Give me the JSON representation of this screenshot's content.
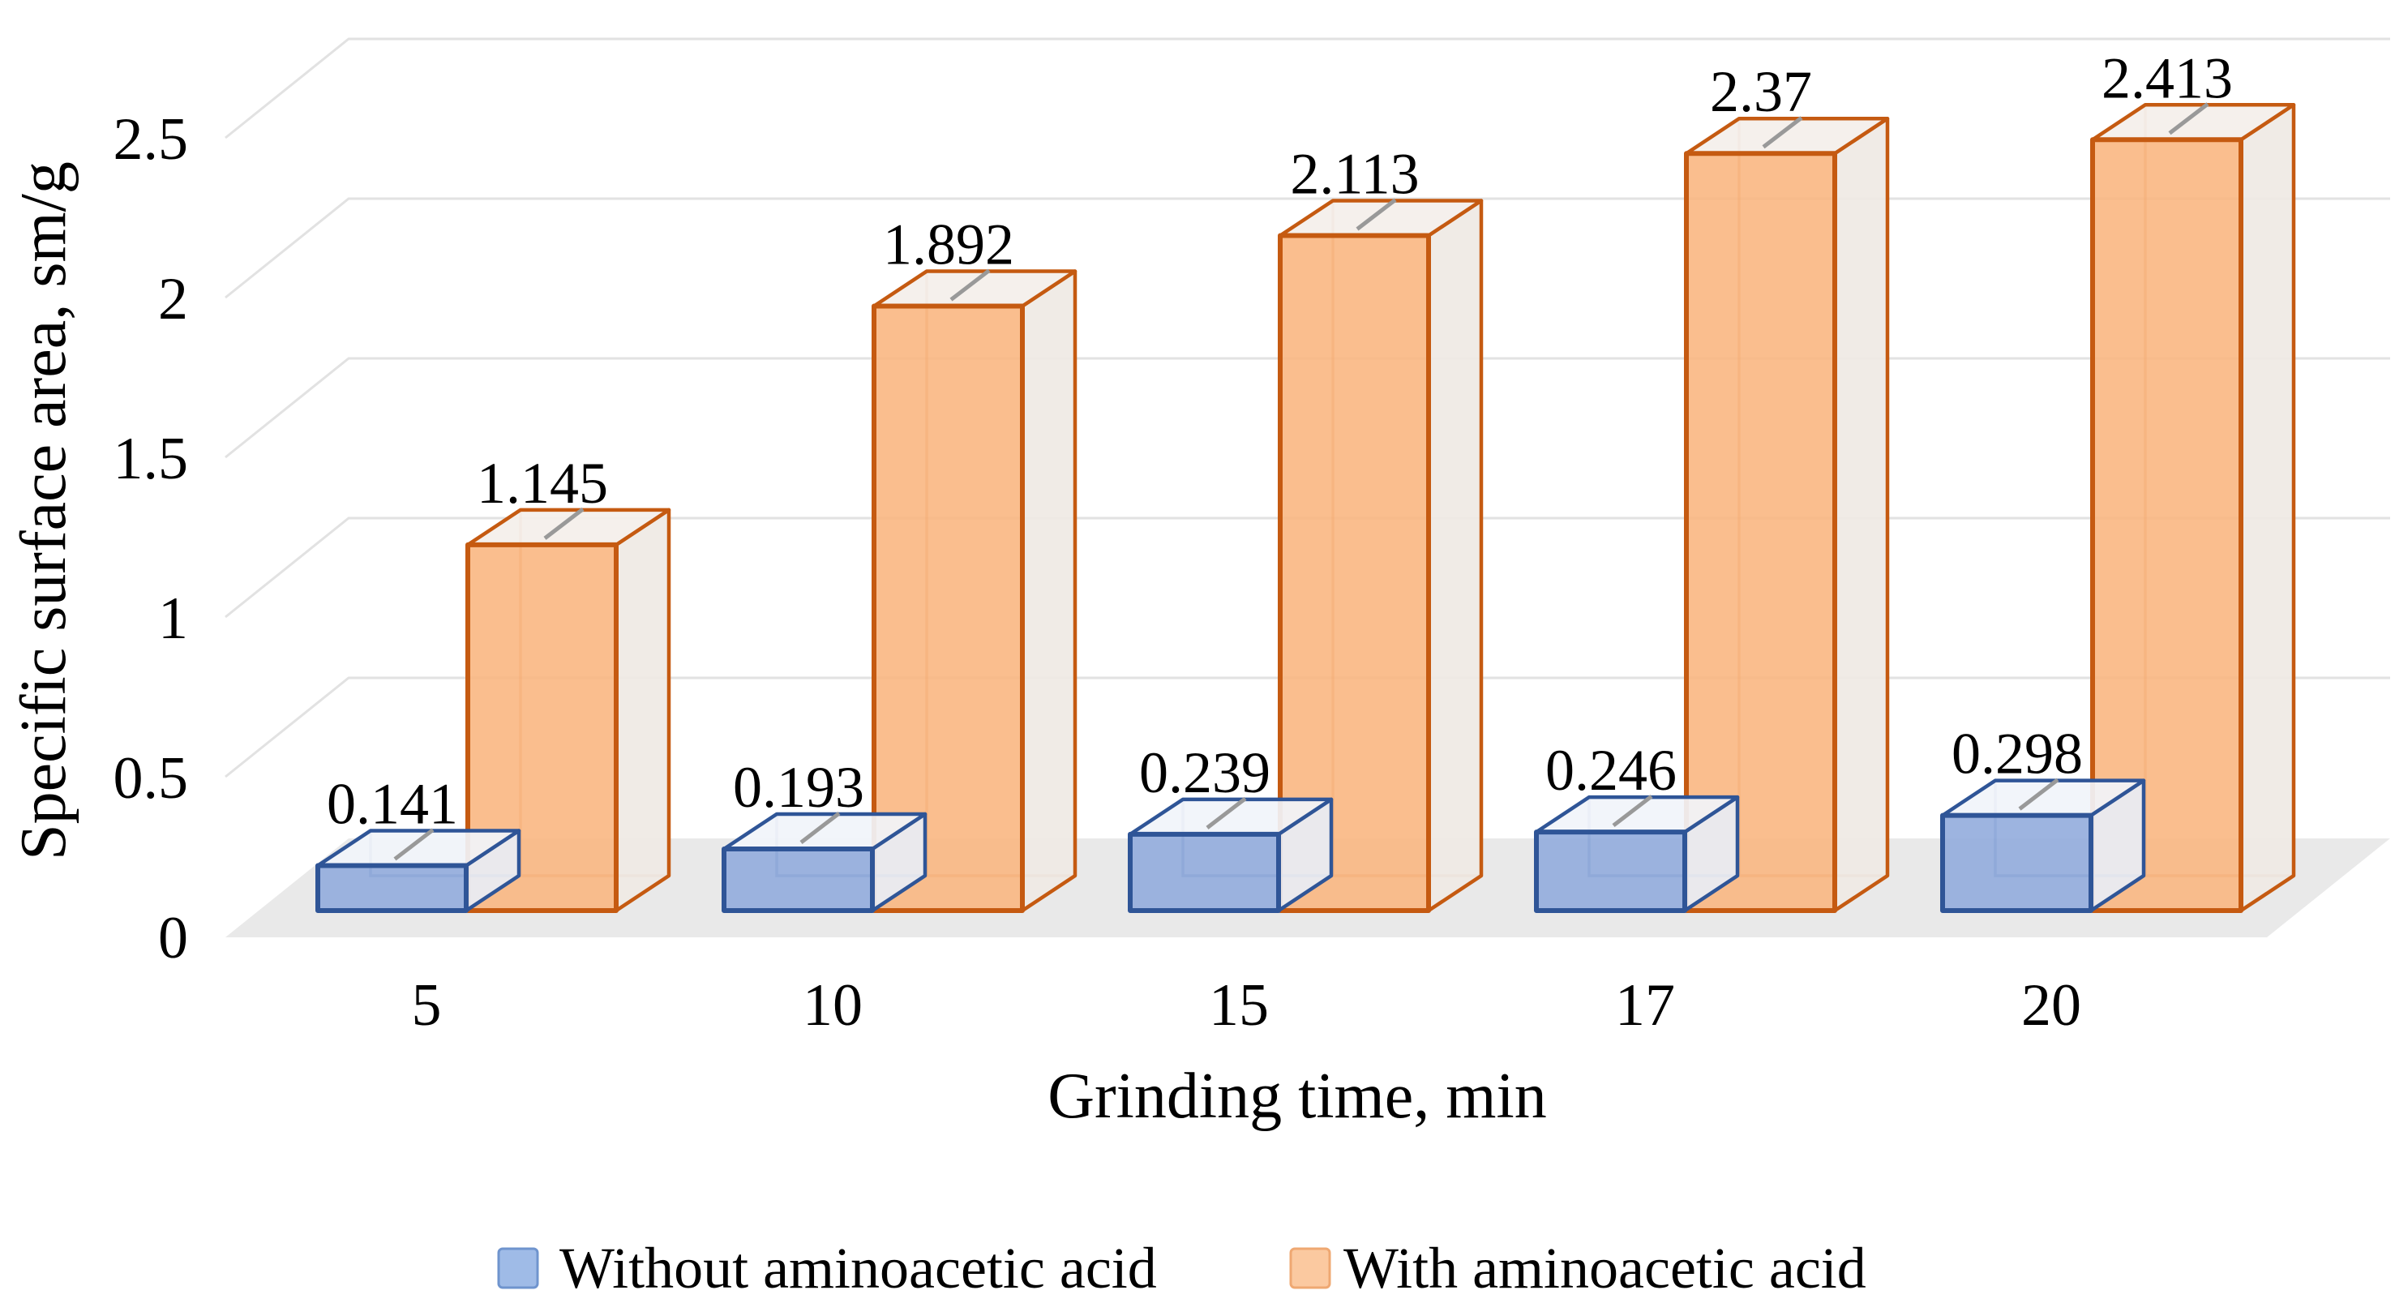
{
  "chart_data": {
    "type": "bar",
    "projection": "3d-column",
    "categories": [
      "5",
      "10",
      "15",
      "17",
      "20"
    ],
    "series": [
      {
        "name": "Without aminoacetic acid",
        "values": [
          0.141,
          0.193,
          0.239,
          0.246,
          0.298
        ],
        "fill": "#8FAADC",
        "border": "#2F5597",
        "top_fill": "#F1F4FA",
        "side_fill": "#E8EDF5",
        "legend_fill": "#9FBBE7",
        "legend_border": "#6F94CE"
      },
      {
        "name": "With aminoacetic acid",
        "values": [
          1.145,
          1.892,
          2.113,
          2.37,
          2.413
        ],
        "fill": "#F9B57E",
        "border": "#C55A11",
        "top_fill": "#F4EFEA",
        "side_fill": "#EFE9E4",
        "legend_fill": "#FBC9A0",
        "legend_border": "#EFA872"
      }
    ],
    "xlabel": "Grinding time, min",
    "ylabel": "Specific surface area,  sm/g",
    "yticks": [
      0,
      0.5,
      1,
      1.5,
      2,
      2.5
    ],
    "ylim": [
      0,
      2.5
    ],
    "data_labels": true,
    "legend_position": "bottom",
    "grid_on": true,
    "grid_color": "#E2E2E2",
    "floor_color": "#E9E9E9",
    "leader_color": "#999999",
    "text_color": "#000000",
    "background": "#FFFFFF"
  }
}
